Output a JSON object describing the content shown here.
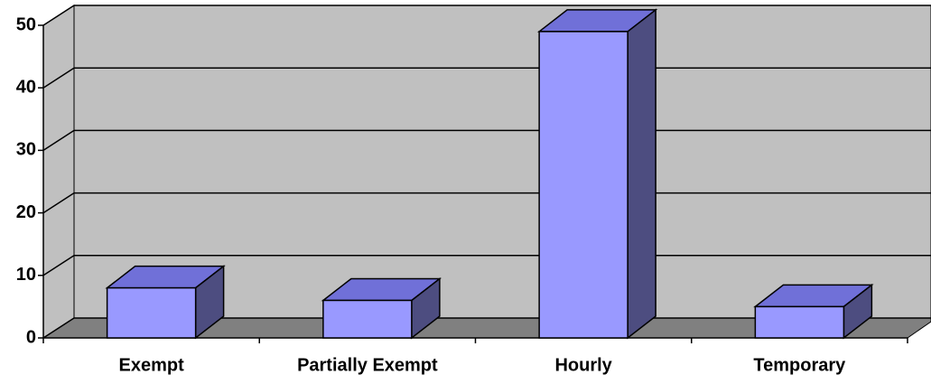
{
  "chart_data": {
    "type": "bar",
    "categories": [
      "Exempt",
      "Partially Exempt",
      "Hourly",
      "Temporary"
    ],
    "values": [
      8,
      6,
      49,
      5
    ],
    "color": "#9999ff",
    "top_color": "#7070d8",
    "side_color": "#4d4d80",
    "wall_color": "#c0c0c0",
    "floor_color": "#808080",
    "ylim": [
      0,
      50
    ],
    "yticks": [
      0,
      10,
      20,
      30,
      40,
      50
    ],
    "grid": true
  }
}
